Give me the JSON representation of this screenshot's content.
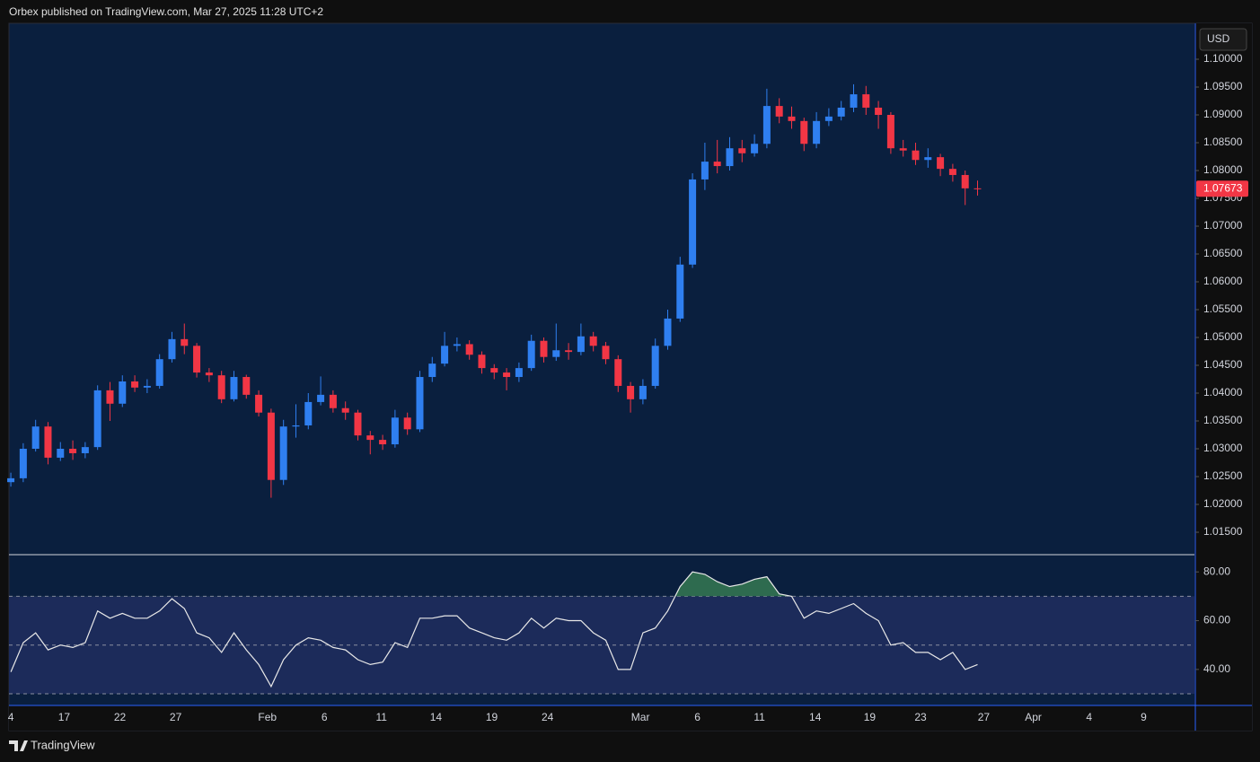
{
  "header": "Orbex published on TradingView.com, Mar 27, 2025 11:28 UTC+2",
  "footer": "TradingView",
  "chart_data": [
    {
      "type": "candlestick",
      "currency": "USD",
      "up_color": "#2f7ff0",
      "down_color": "#f23645",
      "x": [
        0,
        1,
        2,
        3,
        4,
        5,
        6,
        7,
        8,
        9,
        10,
        11,
        12,
        13,
        14,
        15,
        16,
        17,
        18,
        19,
        20,
        21,
        22,
        23,
        24,
        25,
        26,
        27,
        28,
        29,
        30,
        31,
        32,
        33,
        34,
        35,
        36,
        37,
        38,
        39,
        40,
        41,
        42,
        43,
        44,
        45,
        46,
        47,
        48,
        49,
        50,
        51,
        52,
        53,
        54,
        55,
        56,
        57,
        58,
        59,
        60,
        61,
        62,
        63,
        64,
        65,
        66,
        67,
        68,
        69,
        70,
        71,
        72,
        73,
        74,
        75,
        76,
        77,
        78
      ],
      "open": [
        1.024,
        1.0247,
        1.03,
        1.034,
        1.0284,
        1.03,
        1.0292,
        1.0303,
        1.0405,
        1.0381,
        1.0421,
        1.041,
        1.0413,
        1.0461,
        1.0497,
        1.0485,
        1.0437,
        1.0432,
        1.0389,
        1.0429,
        1.0397,
        1.0365,
        1.0244,
        1.034,
        1.0342,
        1.0384,
        1.0397,
        1.0373,
        1.0365,
        1.0324,
        1.0316,
        1.0308,
        1.0356,
        1.0335,
        1.0429,
        1.0453,
        1.0485,
        1.0488,
        1.0469,
        1.0445,
        1.0437,
        1.0429,
        1.0445,
        1.0494,
        1.0465,
        1.0477,
        1.0474,
        1.0502,
        1.0485,
        1.0461,
        1.0413,
        1.0389,
        1.0413,
        1.0485,
        1.0534,
        1.0631,
        1.0784,
        1.0816,
        1.0808,
        1.084,
        1.0831,
        1.0848,
        1.0916,
        1.0897,
        1.0889,
        1.0848,
        1.0889,
        1.0897,
        1.0913,
        1.0937,
        1.0913,
        1.09,
        1.084,
        1.0836,
        1.0819,
        1.0824,
        1.0803,
        1.0792,
        1.0768
      ],
      "high": [
        1.0257,
        1.031,
        1.0352,
        1.0348,
        1.0312,
        1.0315,
        1.0312,
        1.0414,
        1.042,
        1.0432,
        1.0432,
        1.0425,
        1.047,
        1.051,
        1.0525,
        1.049,
        1.0445,
        1.044,
        1.044,
        1.0433,
        1.0405,
        1.0372,
        1.0352,
        1.038,
        1.04,
        1.043,
        1.0405,
        1.0385,
        1.037,
        1.0332,
        1.0325,
        1.037,
        1.0365,
        1.044,
        1.0465,
        1.051,
        1.05,
        1.0495,
        1.0475,
        1.0452,
        1.0445,
        1.0455,
        1.0505,
        1.05,
        1.0525,
        1.049,
        1.0525,
        1.051,
        1.0492,
        1.0468,
        1.042,
        1.0425,
        1.0498,
        1.055,
        1.0645,
        1.0795,
        1.085,
        1.0855,
        1.086,
        1.0855,
        1.0865,
        1.0947,
        1.093,
        1.0915,
        1.0895,
        1.0905,
        1.0912,
        1.0925,
        1.0955,
        1.0952,
        1.0925,
        1.0905,
        1.0855,
        1.085,
        1.084,
        1.083,
        1.0812,
        1.08,
        1.0782
      ],
      "low": [
        1.0232,
        1.024,
        1.0295,
        1.0272,
        1.0278,
        1.028,
        1.0283,
        1.0298,
        1.035,
        1.0375,
        1.0402,
        1.04,
        1.0408,
        1.0455,
        1.047,
        1.0428,
        1.042,
        1.0382,
        1.0385,
        1.039,
        1.0358,
        1.0212,
        1.0235,
        1.032,
        1.0335,
        1.0378,
        1.0365,
        1.0352,
        1.0315,
        1.029,
        1.0298,
        1.0302,
        1.0325,
        1.033,
        1.042,
        1.0448,
        1.0475,
        1.046,
        1.0435,
        1.0425,
        1.0405,
        1.042,
        1.044,
        1.0455,
        1.0458,
        1.046,
        1.0468,
        1.0475,
        1.0452,
        1.0402,
        1.0365,
        1.038,
        1.0408,
        1.0478,
        1.0528,
        1.0625,
        1.0765,
        1.0795,
        1.08,
        1.0815,
        1.0825,
        1.084,
        1.0885,
        1.0875,
        1.0835,
        1.084,
        1.088,
        1.089,
        1.0905,
        1.09,
        1.0875,
        1.083,
        1.0825,
        1.081,
        1.0805,
        1.079,
        1.078,
        1.0738,
        1.0755
      ],
      "close": [
        1.0247,
        1.03,
        1.034,
        1.0284,
        1.03,
        1.0292,
        1.0303,
        1.0405,
        1.0381,
        1.0421,
        1.041,
        1.0413,
        1.0461,
        1.0497,
        1.0485,
        1.0437,
        1.0432,
        1.0389,
        1.0429,
        1.0397,
        1.0365,
        1.0244,
        1.034,
        1.0342,
        1.0384,
        1.0397,
        1.0373,
        1.0365,
        1.0324,
        1.0316,
        1.0308,
        1.0356,
        1.0335,
        1.0429,
        1.0453,
        1.0485,
        1.0488,
        1.0469,
        1.0445,
        1.0437,
        1.0429,
        1.0445,
        1.0494,
        1.0465,
        1.0477,
        1.0474,
        1.0502,
        1.0485,
        1.0461,
        1.0413,
        1.0389,
        1.0413,
        1.0485,
        1.0534,
        1.0631,
        1.0784,
        1.0816,
        1.0808,
        1.084,
        1.0831,
        1.0848,
        1.0916,
        1.0897,
        1.0889,
        1.0848,
        1.0889,
        1.0897,
        1.0913,
        1.0937,
        1.0913,
        1.09,
        1.084,
        1.0836,
        1.0819,
        1.0824,
        1.0803,
        1.0792,
        1.0768,
        1.07673
      ],
      "last_price": {
        "value": 1.07673,
        "label": "1.07673"
      },
      "xlim": [
        -0.15,
        95.5
      ],
      "xticks": [
        {
          "value": 0,
          "label": "4"
        },
        {
          "value": 4.3,
          "label": "17"
        },
        {
          "value": 8.8,
          "label": "22"
        },
        {
          "value": 13.3,
          "label": "27"
        },
        {
          "value": 20.7,
          "label": "Feb"
        },
        {
          "value": 25.3,
          "label": "6"
        },
        {
          "value": 29.9,
          "label": "11"
        },
        {
          "value": 34.3,
          "label": "14"
        },
        {
          "value": 38.8,
          "label": "19"
        },
        {
          "value": 43.3,
          "label": "24"
        },
        {
          "value": 50.8,
          "label": "Mar"
        },
        {
          "value": 55.4,
          "label": "6"
        },
        {
          "value": 60.4,
          "label": "11"
        },
        {
          "value": 64.9,
          "label": "14"
        },
        {
          "value": 69.3,
          "label": "19"
        },
        {
          "value": 73.4,
          "label": "23"
        },
        {
          "value": 78.5,
          "label": "27"
        },
        {
          "value": 82.5,
          "label": "Apr"
        },
        {
          "value": 87,
          "label": "4"
        },
        {
          "value": 91.4,
          "label": "9"
        }
      ],
      "ylim": [
        1.01113,
        1.10613
      ],
      "yticks": [
        {
          "value": 1.015,
          "label": "1.01500"
        },
        {
          "value": 1.02,
          "label": "1.02000"
        },
        {
          "value": 1.025,
          "label": "1.02500"
        },
        {
          "value": 1.03,
          "label": "1.03000"
        },
        {
          "value": 1.035,
          "label": "1.03500"
        },
        {
          "value": 1.04,
          "label": "1.04000"
        },
        {
          "value": 1.045,
          "label": "1.04500"
        },
        {
          "value": 1.05,
          "label": "1.05000"
        },
        {
          "value": 1.055,
          "label": "1.05500"
        },
        {
          "value": 1.06,
          "label": "1.06000"
        },
        {
          "value": 1.065,
          "label": "1.06500"
        },
        {
          "value": 1.07,
          "label": "1.07000"
        },
        {
          "value": 1.075,
          "label": "1.07500"
        },
        {
          "value": 1.08,
          "label": "1.08000"
        },
        {
          "value": 1.085,
          "label": "1.08500"
        },
        {
          "value": 1.09,
          "label": "1.09000"
        },
        {
          "value": 1.095,
          "label": "1.09500"
        },
        {
          "value": 1.1,
          "label": "1.10000"
        }
      ]
    },
    {
      "type": "line",
      "color": "#e8e8e8",
      "band_color": "#1c2b5a",
      "overbought_color": "#2e6b4f",
      "x": [
        0,
        1,
        2,
        3,
        4,
        5,
        6,
        7,
        8,
        9,
        10,
        11,
        12,
        13,
        14,
        15,
        16,
        17,
        18,
        19,
        20,
        21,
        22,
        23,
        24,
        25,
        26,
        27,
        28,
        29,
        30,
        31,
        32,
        33,
        34,
        35,
        36,
        37,
        38,
        39,
        40,
        41,
        42,
        43,
        44,
        45,
        46,
        47,
        48,
        49,
        50,
        51,
        52,
        53,
        54,
        55,
        56,
        57,
        58,
        59,
        60,
        61,
        62,
        63,
        64,
        65,
        66,
        67,
        68,
        69,
        70,
        71,
        72,
        73,
        74,
        75,
        76,
        77,
        78
      ],
      "values": [
        39,
        51,
        55,
        48,
        50,
        49,
        51,
        64,
        61,
        63,
        61,
        61,
        64,
        69,
        65,
        55,
        53,
        47,
        55,
        48,
        42,
        33,
        44,
        50,
        53,
        52,
        49,
        48,
        44,
        42,
        43,
        51,
        49,
        61,
        61,
        62,
        62,
        57,
        55,
        53,
        52,
        55,
        61,
        57,
        61,
        60,
        60,
        55,
        52,
        40,
        40,
        55,
        57,
        64,
        74,
        80,
        79,
        76,
        74,
        75,
        77,
        78,
        71,
        70,
        61,
        64,
        63,
        65,
        67,
        63,
        60,
        50,
        51,
        47,
        47,
        44,
        47,
        40,
        42
      ],
      "levels": [
        30,
        50,
        70
      ],
      "xlim": [
        -0.15,
        95.5
      ],
      "ylim": [
        25.6,
        86.7
      ],
      "yticks": [
        {
          "value": 40,
          "label": "40.00"
        },
        {
          "value": 60,
          "label": "60.00"
        },
        {
          "value": 80,
          "label": "80.00"
        }
      ]
    }
  ]
}
